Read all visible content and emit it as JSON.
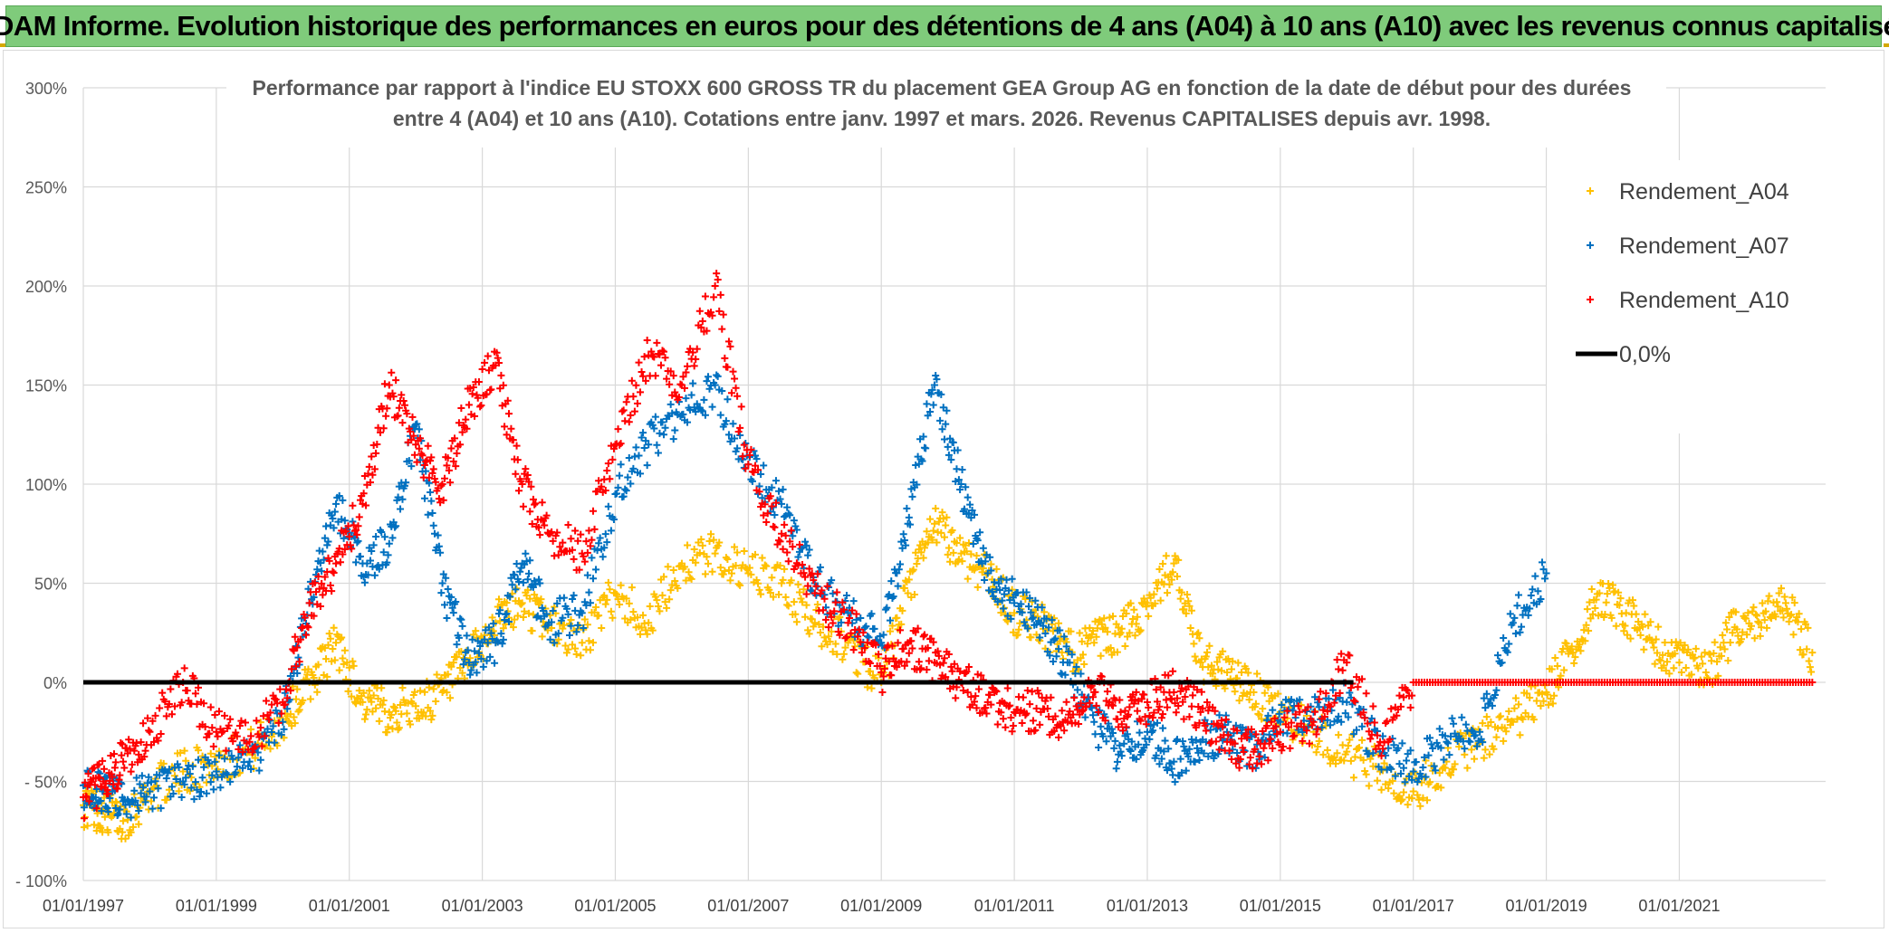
{
  "banner": {
    "title": "ADAM Informe. Evolution historique des performances en euros pour des détentions de 4 ans (A04) à 10 ans (A10) avec les revenus connus capitalisés"
  },
  "chart_data": {
    "type": "scatter",
    "title_line1": "Performance par rapport à l'indice EU STOXX 600 GROSS TR  du placement GEA Group AG en fonction de la date de début pour des durées",
    "title_line2": "entre 4 (A04) et 10 ans (A10). Cotations entre janv. 1997 et mars. 2026. Revenus CAPITALISES depuis avr. 1998.",
    "xlabel": "",
    "ylabel": "",
    "xlim": [
      1997.0,
      2023.2
    ],
    "ylim": [
      -100,
      300
    ],
    "y_ticks": [
      {
        "value": 300,
        "label": "300%"
      },
      {
        "value": 250,
        "label": "250%"
      },
      {
        "value": 200,
        "label": "200%"
      },
      {
        "value": 150,
        "label": "150%"
      },
      {
        "value": 100,
        "label": "100%"
      },
      {
        "value": 50,
        "label": "50%"
      },
      {
        "value": 0,
        "label": "0%"
      },
      {
        "value": -50,
        "label": "- 50%"
      },
      {
        "value": -100,
        "label": "- 100%"
      }
    ],
    "x_ticks": [
      {
        "value": 1997,
        "label": "01/01/1997"
      },
      {
        "value": 1999,
        "label": "01/01/1999"
      },
      {
        "value": 2001,
        "label": "01/01/2001"
      },
      {
        "value": 2003,
        "label": "01/01/2003"
      },
      {
        "value": 2005,
        "label": "01/01/2005"
      },
      {
        "value": 2007,
        "label": "01/01/2007"
      },
      {
        "value": 2009,
        "label": "01/01/2009"
      },
      {
        "value": 2011,
        "label": "01/01/2011"
      },
      {
        "value": 2013,
        "label": "01/01/2013"
      },
      {
        "value": 2015,
        "label": "01/01/2015"
      },
      {
        "value": 2017,
        "label": "01/01/2017"
      },
      {
        "value": 2019,
        "label": "01/01/2019"
      },
      {
        "value": 2021,
        "label": "01/01/2021"
      }
    ],
    "grid": true,
    "legend_position": "top-right",
    "series": [
      {
        "name": "Rendement_A04",
        "color": "#ffc000",
        "marker": "plus",
        "x": [
          1997.0,
          1997.3,
          1997.6,
          1998.0,
          1998.5,
          1999.0,
          1999.5,
          2000.0,
          2000.4,
          2000.8,
          2001.2,
          2001.6,
          2002.0,
          2002.4,
          2002.8,
          2003.2,
          2003.6,
          2004.0,
          2004.5,
          2005.0,
          2005.5,
          2006.0,
          2006.5,
          2007.0,
          2007.5,
          2008.0,
          2008.5,
          2009.0,
          2009.4,
          2009.8,
          2010.2,
          2010.6,
          2011.0,
          2011.4,
          2011.8,
          2012.2,
          2012.6,
          2013.0,
          2013.4,
          2013.8,
          2014.2,
          2014.6,
          2015.0,
          2015.5,
          2016.0,
          2016.5,
          2017.0,
          2017.5,
          2018.0,
          2018.5,
          2019.0,
          2019.4,
          2019.8,
          2020.2,
          2020.6,
          2021.0,
          2021.4,
          2021.8,
          2022.2,
          2022.6,
          2023.0
        ],
        "y": [
          -62,
          -65,
          -70,
          -55,
          -45,
          -40,
          -35,
          -20,
          0,
          20,
          -10,
          -15,
          -12,
          -5,
          10,
          30,
          40,
          30,
          20,
          45,
          30,
          60,
          65,
          55,
          50,
          30,
          20,
          0,
          45,
          80,
          65,
          55,
          35,
          30,
          15,
          20,
          25,
          40,
          60,
          10,
          5,
          -5,
          -15,
          -25,
          -35,
          -45,
          -55,
          -40,
          -30,
          -20,
          -5,
          15,
          45,
          35,
          20,
          10,
          5,
          25,
          30,
          40,
          15
        ]
      },
      {
        "name": "Rendement_A07",
        "color": "#0070c0",
        "marker": "plus",
        "x": [
          1997.0,
          1997.3,
          1997.6,
          1998.0,
          1998.5,
          1999.0,
          1999.5,
          2000.0,
          2000.4,
          2000.8,
          2001.2,
          2001.6,
          2002.0,
          2002.4,
          2002.8,
          2003.2,
          2003.6,
          2004.0,
          2004.5,
          2005.0,
          2005.5,
          2006.0,
          2006.5,
          2007.0,
          2007.5,
          2008.0,
          2008.5,
          2009.0,
          2009.4,
          2009.8,
          2010.2,
          2010.6,
          2011.0,
          2011.4,
          2011.8,
          2012.2,
          2012.6,
          2013.0,
          2013.4,
          2013.8,
          2014.2,
          2014.6,
          2015.0,
          2015.5,
          2016.0,
          2016.5,
          2017.0,
          2017.5,
          2018.0,
          2018.5,
          2019.0
        ],
        "y": [
          -52,
          -55,
          -60,
          -55,
          -50,
          -45,
          -40,
          -20,
          40,
          90,
          60,
          70,
          130,
          50,
          10,
          20,
          60,
          30,
          35,
          95,
          120,
          135,
          150,
          110,
          90,
          50,
          35,
          20,
          80,
          150,
          100,
          55,
          40,
          30,
          10,
          -20,
          -35,
          -25,
          -40,
          -30,
          -25,
          -35,
          -20,
          -15,
          -10,
          -35,
          -45,
          -30,
          -25,
          30,
          55
        ]
      },
      {
        "name": "Rendement_A10",
        "color": "#ff0000",
        "marker": "plus",
        "x": [
          1997.0,
          1997.3,
          1997.6,
          1998.0,
          1998.5,
          1999.0,
          1999.5,
          2000.0,
          2000.4,
          2000.8,
          2001.2,
          2001.6,
          2002.0,
          2002.4,
          2002.8,
          2003.2,
          2003.6,
          2004.0,
          2004.5,
          2005.0,
          2005.5,
          2006.0,
          2006.5,
          2007.0,
          2007.5,
          2008.0,
          2008.5,
          2009.0,
          2009.4,
          2009.8,
          2010.2,
          2010.6,
          2011.0,
          2011.4,
          2011.8,
          2012.2,
          2012.6,
          2013.0,
          2013.4,
          2013.8,
          2014.2,
          2014.6,
          2015.0,
          2015.5,
          2016.0,
          2016.5,
          2017.0,
          2018.0,
          2019.0,
          2020.0,
          2021.0,
          2022.0,
          2023.0
        ],
        "y": [
          -58,
          -50,
          -40,
          -25,
          0,
          -25,
          -30,
          -10,
          40,
          60,
          90,
          150,
          120,
          100,
          140,
          160,
          100,
          75,
          65,
          120,
          165,
          150,
          200,
          110,
          75,
          45,
          30,
          5,
          20,
          10,
          0,
          -10,
          -15,
          -15,
          -20,
          -5,
          -15,
          -10,
          -5,
          -15,
          -30,
          -35,
          -25,
          -20,
          10,
          -30,
          0,
          0,
          0,
          0,
          0,
          0,
          0
        ]
      },
      {
        "name": "0,0%",
        "color": "#000000",
        "marker": "line",
        "x": [
          1997.0,
          2016.1
        ],
        "y": [
          0,
          0
        ]
      }
    ]
  }
}
